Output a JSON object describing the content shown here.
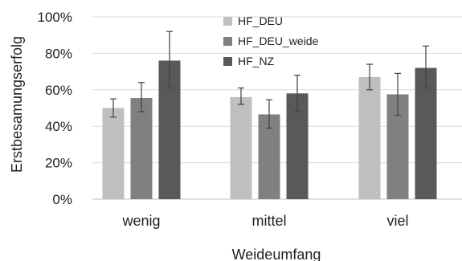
{
  "chart_data": {
    "type": "bar",
    "title": "",
    "xlabel": "Weideumfang",
    "ylabel": "Erstbesamungserfolg",
    "categories": [
      "wenig",
      "mittel",
      "viel"
    ],
    "ylim": [
      0,
      100
    ],
    "ytick_values": [
      0,
      20,
      40,
      60,
      80,
      100
    ],
    "ytick_labels": [
      "0%",
      "20%",
      "40%",
      "60%",
      "80%",
      "100%"
    ],
    "grid": "horizontal",
    "legend_position": "top-center",
    "series": [
      {
        "name": "HF_DEU",
        "color": "#bfbfbf",
        "values": [
          50,
          56,
          67
        ],
        "error_low": [
          45,
          52,
          60
        ],
        "error_high": [
          55,
          61,
          74
        ]
      },
      {
        "name": "HF_DEU_weide",
        "color": "#808080",
        "values": [
          55.5,
          46.5,
          57.5
        ],
        "error_low": [
          48,
          39,
          46
        ],
        "error_high": [
          64,
          54.5,
          69
        ]
      },
      {
        "name": "HF_NZ",
        "color": "#595959",
        "values": [
          76,
          58,
          72
        ],
        "error_low": [
          61,
          48,
          61
        ],
        "error_high": [
          92,
          68,
          84
        ]
      }
    ]
  }
}
